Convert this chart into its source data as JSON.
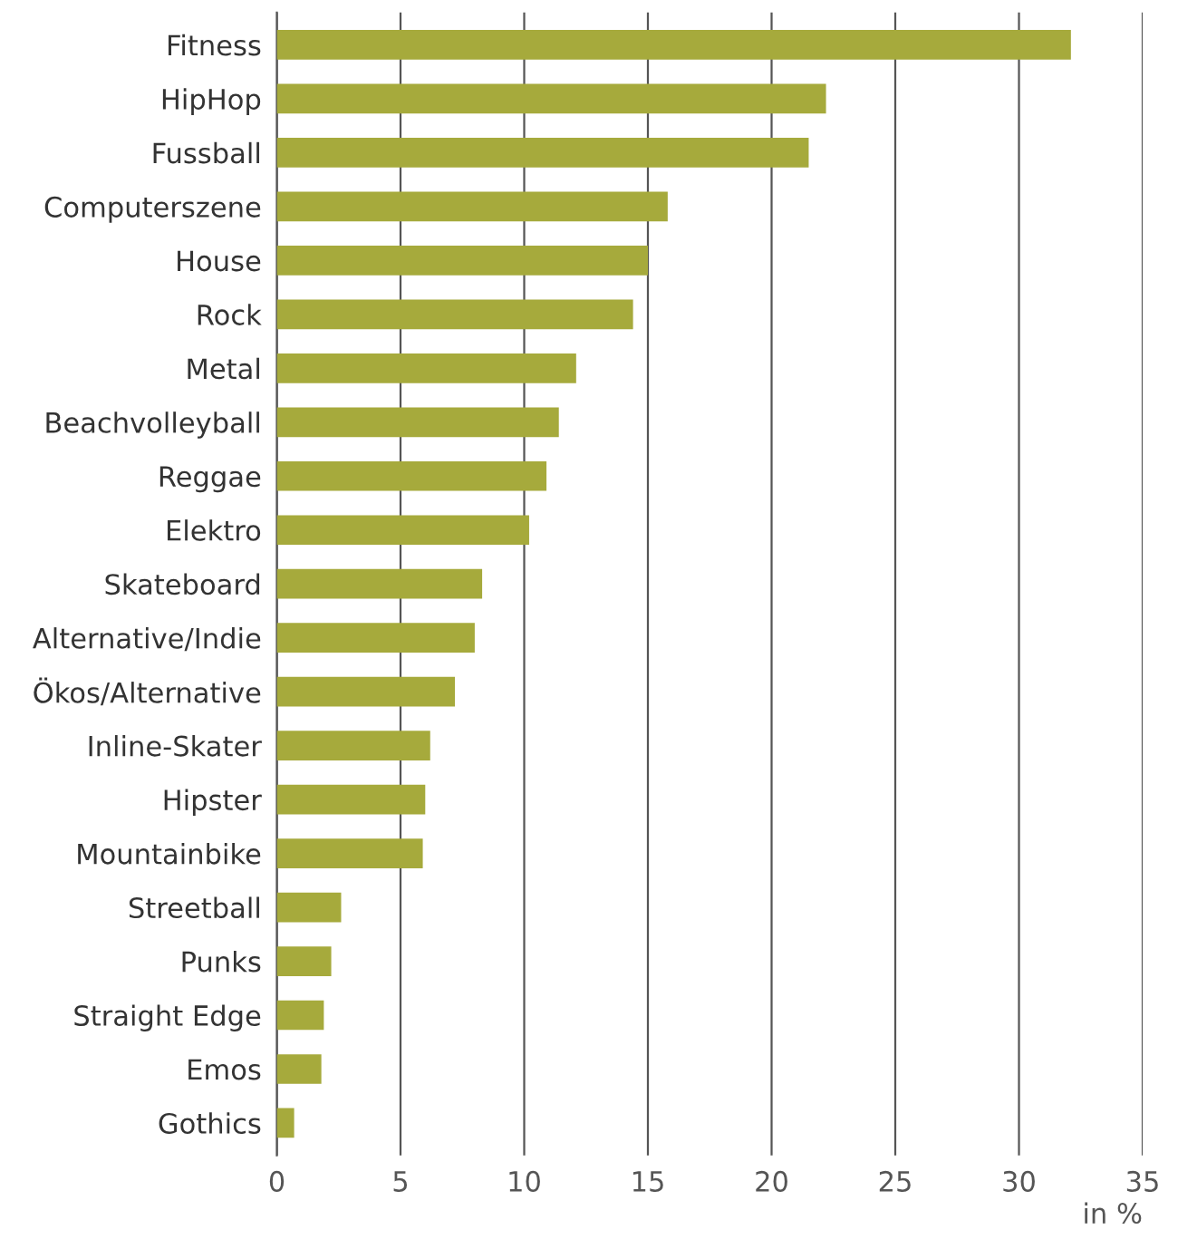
{
  "chart_data": {
    "type": "bar",
    "orientation": "horizontal",
    "xlabel": "in %",
    "categories": [
      "Fitness",
      "HipHop",
      "Fussball",
      "Computerszene",
      "House",
      "Rock",
      "Metal",
      "Beachvolleyball",
      "Reggae",
      "Elektro",
      "Skateboard",
      "Alternative/Indie",
      "Ökos/Alternative",
      "Inline-Skater",
      "Hipster",
      "Mountainbike",
      "Streetball",
      "Punks",
      "Straight Edge",
      "Emos",
      "Gothics"
    ],
    "values": [
      32.1,
      22.2,
      21.5,
      15.8,
      15.0,
      14.4,
      12.1,
      11.4,
      10.9,
      10.2,
      8.3,
      8.0,
      7.2,
      6.2,
      6.0,
      5.9,
      2.6,
      2.2,
      1.9,
      1.8,
      0.7
    ],
    "color": "#a6aa3c",
    "xlim": [
      0,
      35
    ],
    "xticks": [
      0,
      5,
      10,
      15,
      20,
      25,
      30,
      35
    ],
    "grid": "x"
  }
}
